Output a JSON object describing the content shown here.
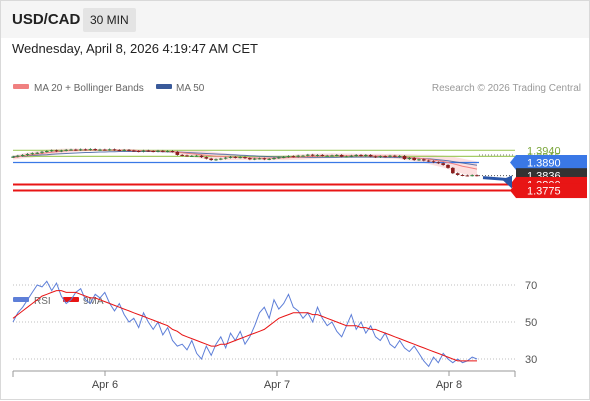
{
  "header": {
    "pair": "USD/CAD",
    "timeframe": "30 MIN",
    "datetime": "Wednesday, April 8, 2026 4:19:47 AM CET"
  },
  "legend": {
    "ma20": "MA 20 + Bollinger Bands",
    "ma50": "MA 50",
    "credit": "Research © 2026 Trading Central",
    "rsi": "RSI",
    "rsi_ma": "9MA"
  },
  "colors": {
    "ma20": "#f08080",
    "ma50": "#3a5a9a",
    "band": "#fbdada",
    "resistance": "#a4cc66",
    "pivot": "#3a78e6",
    "support": "#e81515",
    "last": "#333333",
    "rsi": "#5e7fd8",
    "rsi_ma": "#e81515",
    "arrow": "#2a56a8"
  },
  "chart_data": [
    {
      "type": "candlestick",
      "title": "",
      "x_labels": [
        "Apr 6",
        "Apr 7",
        "Apr 8"
      ],
      "price_levels": [
        {
          "value": 1.394,
          "label": "1.3940",
          "kind": "resistance"
        },
        {
          "value": 1.3915,
          "label": "1.3915",
          "kind": "resistance"
        },
        {
          "value": 1.389,
          "label": "1.3890",
          "kind": "pivot"
        },
        {
          "value": 1.3836,
          "label": "1.3836",
          "kind": "last"
        },
        {
          "value": 1.38,
          "label": "1.3800",
          "kind": "support"
        },
        {
          "value": 1.3775,
          "label": "1.3775",
          "kind": "support"
        }
      ],
      "close_series": [
        1.3914,
        1.3918,
        1.3921,
        1.3925,
        1.3928,
        1.393,
        1.3934,
        1.3937,
        1.394,
        1.3936,
        1.3939,
        1.3942,
        1.3943,
        1.3941,
        1.3944,
        1.3942,
        1.3945,
        1.3941,
        1.3943,
        1.3942,
        1.3944,
        1.3941,
        1.394,
        1.3942,
        1.3939,
        1.3937,
        1.3935,
        1.3939,
        1.3937,
        1.3935,
        1.3938,
        1.3935,
        1.3937,
        1.3934,
        1.3921,
        1.3919,
        1.3917,
        1.3917,
        1.3918,
        1.3912,
        1.3906,
        1.39,
        1.3903,
        1.3906,
        1.391,
        1.3913,
        1.391,
        1.3912,
        1.3908,
        1.3903,
        1.3906,
        1.3907,
        1.3903,
        1.3905,
        1.3908,
        1.3911,
        1.3913,
        1.3916,
        1.3914,
        1.3918,
        1.3918,
        1.3922,
        1.3918,
        1.3921,
        1.3918,
        1.3918,
        1.3919,
        1.3921,
        1.3914,
        1.3915,
        1.3918,
        1.3921,
        1.3917,
        1.3921,
        1.3915,
        1.3912,
        1.3916,
        1.3914,
        1.3918,
        1.3914,
        1.3917,
        1.3904,
        1.3909,
        1.39,
        1.3903,
        1.3898,
        1.3895,
        1.3891,
        1.3887,
        1.388,
        1.3868,
        1.3846,
        1.3839,
        1.3837,
        1.3836,
        1.3838,
        1.3836
      ],
      "series": [
        {
          "name": "MA 20 + Bollinger Bands",
          "values": [
            1.391,
            1.3913,
            1.3917,
            1.392,
            1.3922,
            1.3925,
            1.3927,
            1.393,
            1.3932,
            1.3934,
            1.3936,
            1.3938,
            1.3939,
            1.394,
            1.3941,
            1.3941,
            1.3941,
            1.3941,
            1.3941,
            1.3941,
            1.3941,
            1.3941,
            1.3941,
            1.3941,
            1.394,
            1.394,
            1.3939,
            1.3938,
            1.3938,
            1.3937,
            1.3937,
            1.3936,
            1.3935,
            1.3934,
            1.3932,
            1.393,
            1.3928,
            1.3926,
            1.3924,
            1.3922,
            1.392,
            1.3918,
            1.3916,
            1.3915,
            1.3914,
            1.3913,
            1.3912,
            1.3911,
            1.391,
            1.3909,
            1.3909,
            1.3908,
            1.3908,
            1.3908,
            1.3908,
            1.3909,
            1.3909,
            1.391,
            1.3911,
            1.3912,
            1.3913,
            1.3914,
            1.3915,
            1.3916,
            1.3917,
            1.3917,
            1.3918,
            1.3918,
            1.3918,
            1.3918,
            1.3918,
            1.3918,
            1.3918,
            1.3918,
            1.3917,
            1.3917,
            1.3917,
            1.3916,
            1.3916,
            1.3915,
            1.3914,
            1.3912,
            1.3911,
            1.3909,
            1.3907,
            1.3905,
            1.3903,
            1.39,
            1.3897,
            1.3894,
            1.389,
            1.3885,
            1.388,
            1.3875,
            1.3871,
            1.3867,
            1.3863
          ]
        },
        {
          "name": "MA 50",
          "values": [
            1.3914,
            1.3915,
            1.3916,
            1.3918,
            1.3919,
            1.392,
            1.3921,
            1.3922,
            1.3924,
            1.3925,
            1.3926,
            1.3927,
            1.3928,
            1.3929,
            1.393,
            1.3931,
            1.3931,
            1.3932,
            1.3933,
            1.3933,
            1.3934,
            1.3934,
            1.3935,
            1.3935,
            1.3935,
            1.3935,
            1.3935,
            1.3935,
            1.3935,
            1.3935,
            1.3935,
            1.3934,
            1.3934,
            1.3933,
            1.3933,
            1.3932,
            1.3931,
            1.393,
            1.3929,
            1.3928,
            1.3927,
            1.3926,
            1.3925,
            1.3924,
            1.3923,
            1.3922,
            1.3921,
            1.392,
            1.3919,
            1.3918,
            1.3917,
            1.3916,
            1.3915,
            1.3914,
            1.3913,
            1.3913,
            1.3912,
            1.3912,
            1.3911,
            1.3911,
            1.3911,
            1.3911,
            1.3911,
            1.3911,
            1.3911,
            1.3911,
            1.3911,
            1.3911,
            1.3912,
            1.3912,
            1.3912,
            1.3912,
            1.3912,
            1.3912,
            1.3912,
            1.3912,
            1.3912,
            1.3911,
            1.3911,
            1.3911,
            1.391,
            1.391,
            1.3909,
            1.3908,
            1.3907,
            1.3906,
            1.3905,
            1.3903,
            1.3901,
            1.3899,
            1.3897,
            1.3894,
            1.3891,
            1.3888,
            1.3885,
            1.3882,
            1.3879
          ]
        }
      ],
      "band_width": [
        0.0008,
        0.0009,
        0.001,
        0.0011,
        0.0012,
        0.0012,
        0.0012,
        0.0012,
        0.0012,
        0.0011,
        0.001,
        0.0009,
        0.0008,
        0.0007,
        0.0006,
        0.0005,
        0.0005,
        0.0004,
        0.0004,
        0.0004,
        0.0004,
        0.0004,
        0.0004,
        0.0004,
        0.0004,
        0.0004,
        0.0004,
        0.0004,
        0.0004,
        0.0004,
        0.0004,
        0.0004,
        0.0005,
        0.0006,
        0.0008,
        0.001,
        0.0012,
        0.0014,
        0.0015,
        0.0016,
        0.0016,
        0.0016,
        0.0016,
        0.0015,
        0.0014,
        0.0013,
        0.0012,
        0.0011,
        0.001,
        0.001,
        0.0009,
        0.0009,
        0.0009,
        0.0009,
        0.0009,
        0.0009,
        0.001,
        0.001,
        0.001,
        0.0011,
        0.0011,
        0.0011,
        0.0011,
        0.0011,
        0.001,
        0.001,
        0.001,
        0.0009,
        0.0009,
        0.0009,
        0.0009,
        0.0008,
        0.0008,
        0.0008,
        0.0008,
        0.0009,
        0.0009,
        0.0009,
        0.001,
        0.001,
        0.0011,
        0.0012,
        0.0013,
        0.0014,
        0.0015,
        0.0017,
        0.0019,
        0.0021,
        0.0023,
        0.0025,
        0.0027,
        0.0029,
        0.003,
        0.0031,
        0.0031,
        0.0031,
        0.0031
      ],
      "projection": {
        "from": 1.3836,
        "to": 1.3775
      }
    },
    {
      "type": "line",
      "title": "",
      "y_ticks": [
        70,
        50,
        30
      ],
      "ylim": [
        25,
        78
      ],
      "series": [
        {
          "name": "RSI",
          "values": [
            50,
            55,
            58,
            62,
            66,
            70,
            69,
            72,
            67,
            71,
            64,
            60,
            62,
            66,
            68,
            62,
            60,
            65,
            63,
            66,
            60,
            56,
            60,
            54,
            50,
            52,
            47,
            55,
            50,
            46,
            50,
            43,
            47,
            40,
            37,
            38,
            35,
            40,
            33,
            30,
            37,
            32,
            38,
            42,
            36,
            44,
            40,
            45,
            38,
            42,
            48,
            55,
            58,
            52,
            62,
            57,
            60,
            65,
            58,
            56,
            52,
            55,
            50,
            58,
            52,
            48,
            50,
            45,
            42,
            48,
            54,
            46,
            50,
            44,
            48,
            42,
            40,
            44,
            38,
            36,
            40,
            36,
            34,
            37,
            33,
            29,
            26,
            31,
            28,
            33,
            30,
            28,
            30,
            28,
            29,
            31,
            30
          ]
        },
        {
          "name": "9MA",
          "values": [
            52,
            54,
            56,
            58,
            60,
            62,
            64,
            65,
            66,
            67,
            67,
            66,
            66,
            66,
            65,
            64,
            63,
            63,
            62,
            61,
            60,
            59,
            58,
            57,
            56,
            55,
            54,
            53,
            52,
            51,
            50,
            49,
            48,
            46,
            45,
            43,
            42,
            41,
            40,
            39,
            38,
            37,
            37,
            38,
            38,
            39,
            40,
            41,
            42,
            43,
            44,
            45,
            46,
            48,
            50,
            52,
            53,
            54,
            55,
            55,
            55,
            55,
            54,
            54,
            53,
            52,
            51,
            50,
            49,
            48,
            48,
            48,
            47,
            47,
            46,
            46,
            45,
            44,
            43,
            42,
            41,
            40,
            39,
            38,
            37,
            36,
            35,
            34,
            33,
            32,
            31,
            30,
            29,
            29,
            29,
            29,
            29
          ]
        }
      ]
    }
  ]
}
